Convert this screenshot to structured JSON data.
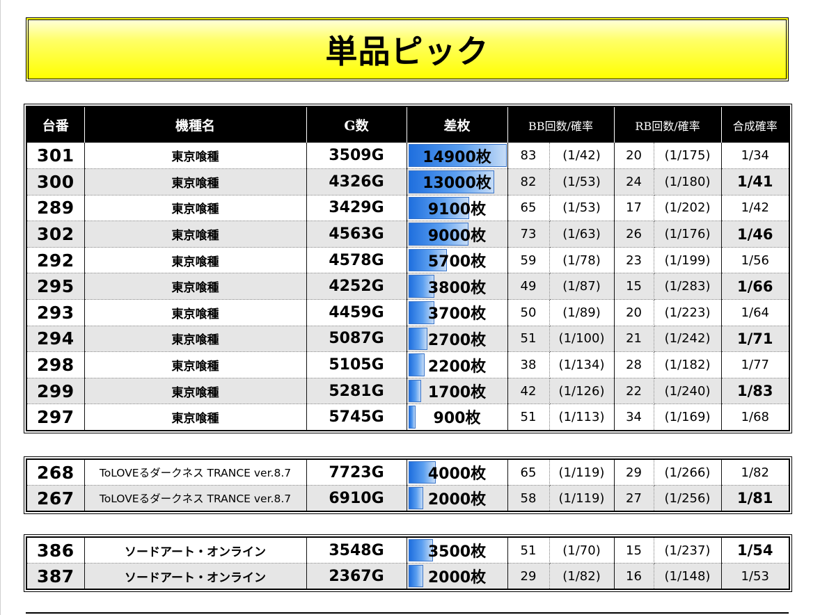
{
  "title": "単品ピック",
  "headers": [
    "台番",
    "機種名",
    "G数",
    "差枚",
    "BB回数/確率",
    "RB回数/確率",
    "合成確率"
  ],
  "colors": {
    "bar_fill": "#2a7de1",
    "bar_border": "#3a74c8",
    "banner": "#ffff00",
    "header_bg": "#000000",
    "alt_row": "#e6e6e6"
  },
  "tables": [
    {
      "rows": [
        {
          "num": "301",
          "name": "東京喰種",
          "games": "3509G",
          "diff": "14900枚",
          "diff_value": 14900,
          "bb_count": "83",
          "bb_prob": "(1/42)",
          "rb_count": "20",
          "rb_prob": "(1/175)",
          "combined": "1/34"
        },
        {
          "num": "300",
          "name": "東京喰種",
          "games": "4326G",
          "diff": "13000枚",
          "diff_value": 13000,
          "bb_count": "82",
          "bb_prob": "(1/53)",
          "rb_count": "24",
          "rb_prob": "(1/180)",
          "combined": "1/41"
        },
        {
          "num": "289",
          "name": "東京喰種",
          "games": "3429G",
          "diff": "9100枚",
          "diff_value": 9100,
          "bb_count": "65",
          "bb_prob": "(1/53)",
          "rb_count": "17",
          "rb_prob": "(1/202)",
          "combined": "1/42"
        },
        {
          "num": "302",
          "name": "東京喰種",
          "games": "4563G",
          "diff": "9000枚",
          "diff_value": 9000,
          "bb_count": "73",
          "bb_prob": "(1/63)",
          "rb_count": "26",
          "rb_prob": "(1/176)",
          "combined": "1/46"
        },
        {
          "num": "292",
          "name": "東京喰種",
          "games": "4578G",
          "diff": "5700枚",
          "diff_value": 5700,
          "bb_count": "59",
          "bb_prob": "(1/78)",
          "rb_count": "23",
          "rb_prob": "(1/199)",
          "combined": "1/56"
        },
        {
          "num": "295",
          "name": "東京喰種",
          "games": "4252G",
          "diff": "3800枚",
          "diff_value": 3800,
          "bb_count": "49",
          "bb_prob": "(1/87)",
          "rb_count": "15",
          "rb_prob": "(1/283)",
          "combined": "1/66"
        },
        {
          "num": "293",
          "name": "東京喰種",
          "games": "4459G",
          "diff": "3700枚",
          "diff_value": 3700,
          "bb_count": "50",
          "bb_prob": "(1/89)",
          "rb_count": "20",
          "rb_prob": "(1/223)",
          "combined": "1/64"
        },
        {
          "num": "294",
          "name": "東京喰種",
          "games": "5087G",
          "diff": "2700枚",
          "diff_value": 2700,
          "bb_count": "51",
          "bb_prob": "(1/100)",
          "rb_count": "21",
          "rb_prob": "(1/242)",
          "combined": "1/71"
        },
        {
          "num": "298",
          "name": "東京喰種",
          "games": "5105G",
          "diff": "2200枚",
          "diff_value": 2200,
          "bb_count": "38",
          "bb_prob": "(1/134)",
          "rb_count": "28",
          "rb_prob": "(1/182)",
          "combined": "1/77"
        },
        {
          "num": "299",
          "name": "東京喰種",
          "games": "5281G",
          "diff": "1700枚",
          "diff_value": 1700,
          "bb_count": "42",
          "bb_prob": "(1/126)",
          "rb_count": "22",
          "rb_prob": "(1/240)",
          "combined": "1/83"
        },
        {
          "num": "297",
          "name": "東京喰種",
          "games": "5745G",
          "diff": "900枚",
          "diff_value": 900,
          "bb_count": "51",
          "bb_prob": "(1/113)",
          "rb_count": "34",
          "rb_prob": "(1/169)",
          "combined": "1/68"
        }
      ]
    },
    {
      "rows": [
        {
          "num": "268",
          "name": "ToLOVEるダークネス TRANCE ver.8.7",
          "games": "7723G",
          "diff": "4000枚",
          "diff_value": 4000,
          "bb_count": "65",
          "bb_prob": "(1/119)",
          "rb_count": "29",
          "rb_prob": "(1/266)",
          "combined": "1/82"
        },
        {
          "num": "267",
          "name": "ToLOVEるダークネス TRANCE ver.8.7",
          "games": "6910G",
          "diff": "2000枚",
          "diff_value": 2000,
          "bb_count": "58",
          "bb_prob": "(1/119)",
          "rb_count": "27",
          "rb_prob": "(1/256)",
          "combined": "1/81"
        }
      ]
    },
    {
      "rows": [
        {
          "num": "386",
          "name": "ソードアート・オンライン",
          "games": "3548G",
          "diff": "3500枚",
          "diff_value": 3500,
          "bb_count": "51",
          "bb_prob": "(1/70)",
          "rb_count": "15",
          "rb_prob": "(1/237)",
          "combined": "1/54"
        },
        {
          "num": "387",
          "name": "ソードアート・オンライン",
          "games": "2367G",
          "diff": "2000枚",
          "diff_value": 2000,
          "bb_count": "29",
          "bb_prob": "(1/82)",
          "rb_count": "16",
          "rb_prob": "(1/148)",
          "combined": "1/53"
        }
      ]
    }
  ]
}
